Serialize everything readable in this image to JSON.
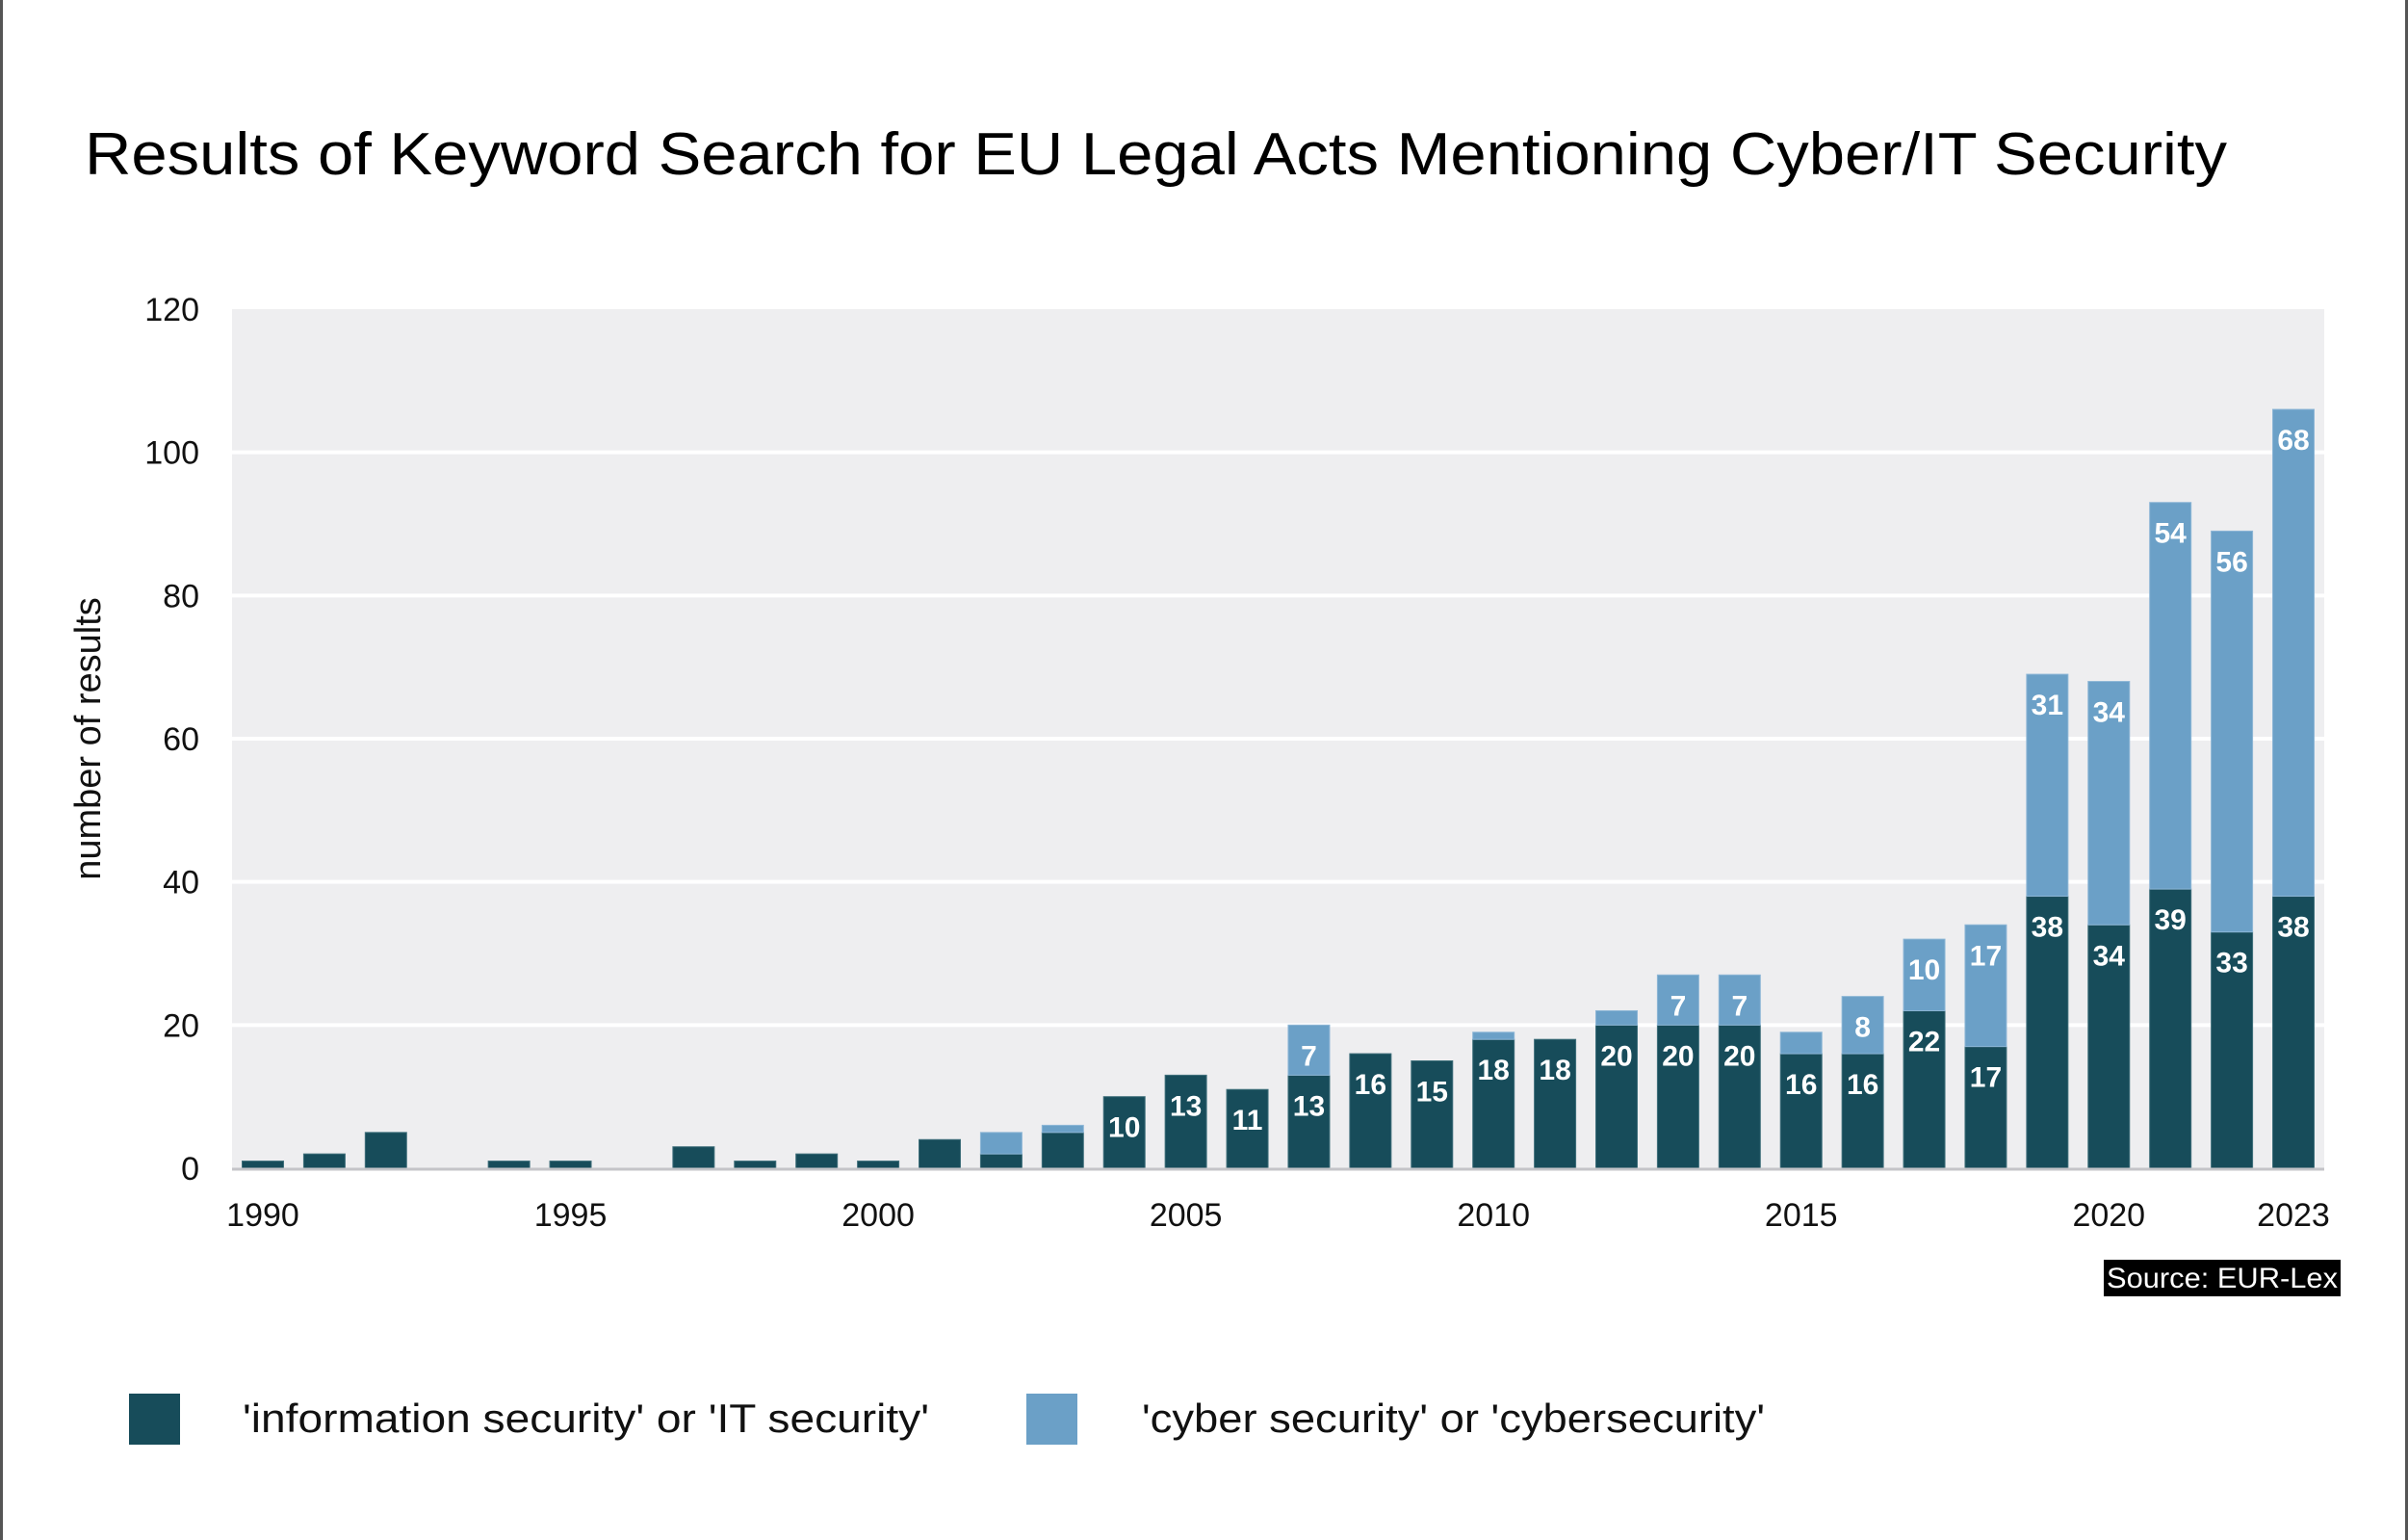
{
  "chart_data": {
    "type": "bar",
    "stacked": true,
    "title": "Results of Keyword Search for EU Legal Acts Mentioning Cyber/IT Security",
    "xlabel": "",
    "ylabel": "number of results",
    "ylim": [
      0,
      120
    ],
    "yticks": [
      "0",
      "20",
      "40",
      "60",
      "80",
      "100",
      "120"
    ],
    "grid": true,
    "categories": [
      1990,
      1991,
      1992,
      1993,
      1994,
      1995,
      1996,
      1997,
      1998,
      1999,
      2000,
      2001,
      2002,
      2003,
      2004,
      2005,
      2006,
      2007,
      2008,
      2009,
      2010,
      2011,
      2012,
      2013,
      2014,
      2015,
      2016,
      2017,
      2018,
      2019,
      2020,
      2021,
      2022,
      2023
    ],
    "xtick_labels": [
      "1990",
      "1995",
      "2000",
      "2005",
      "2010",
      "2015",
      "2020",
      "2023"
    ],
    "series": [
      {
        "name": "'information security' or 'IT security'",
        "color": "#174C5A",
        "values": [
          1,
          2,
          5,
          0,
          1,
          1,
          0,
          3,
          1,
          2,
          1,
          4,
          2,
          5,
          10,
          13,
          11,
          13,
          16,
          15,
          18,
          18,
          20,
          20,
          20,
          16,
          16,
          22,
          17,
          38,
          34,
          39,
          33,
          38
        ]
      },
      {
        "name": "'cyber security' or 'cybersecurity'",
        "color": "#6BA0C7",
        "values": [
          0,
          0,
          0,
          0,
          0,
          0,
          0,
          0,
          0,
          0,
          0,
          0,
          3,
          1,
          0,
          0,
          0,
          7,
          0,
          0,
          1,
          0,
          2,
          7,
          7,
          3,
          8,
          10,
          17,
          31,
          34,
          54,
          56,
          68
        ]
      }
    ],
    "data_label_min": 7,
    "legend": "bottom-left",
    "source": "Source: EUR-Lex"
  },
  "colors": {
    "plot_background": "#EEEEF0",
    "gridline": "#FFFFFF"
  }
}
